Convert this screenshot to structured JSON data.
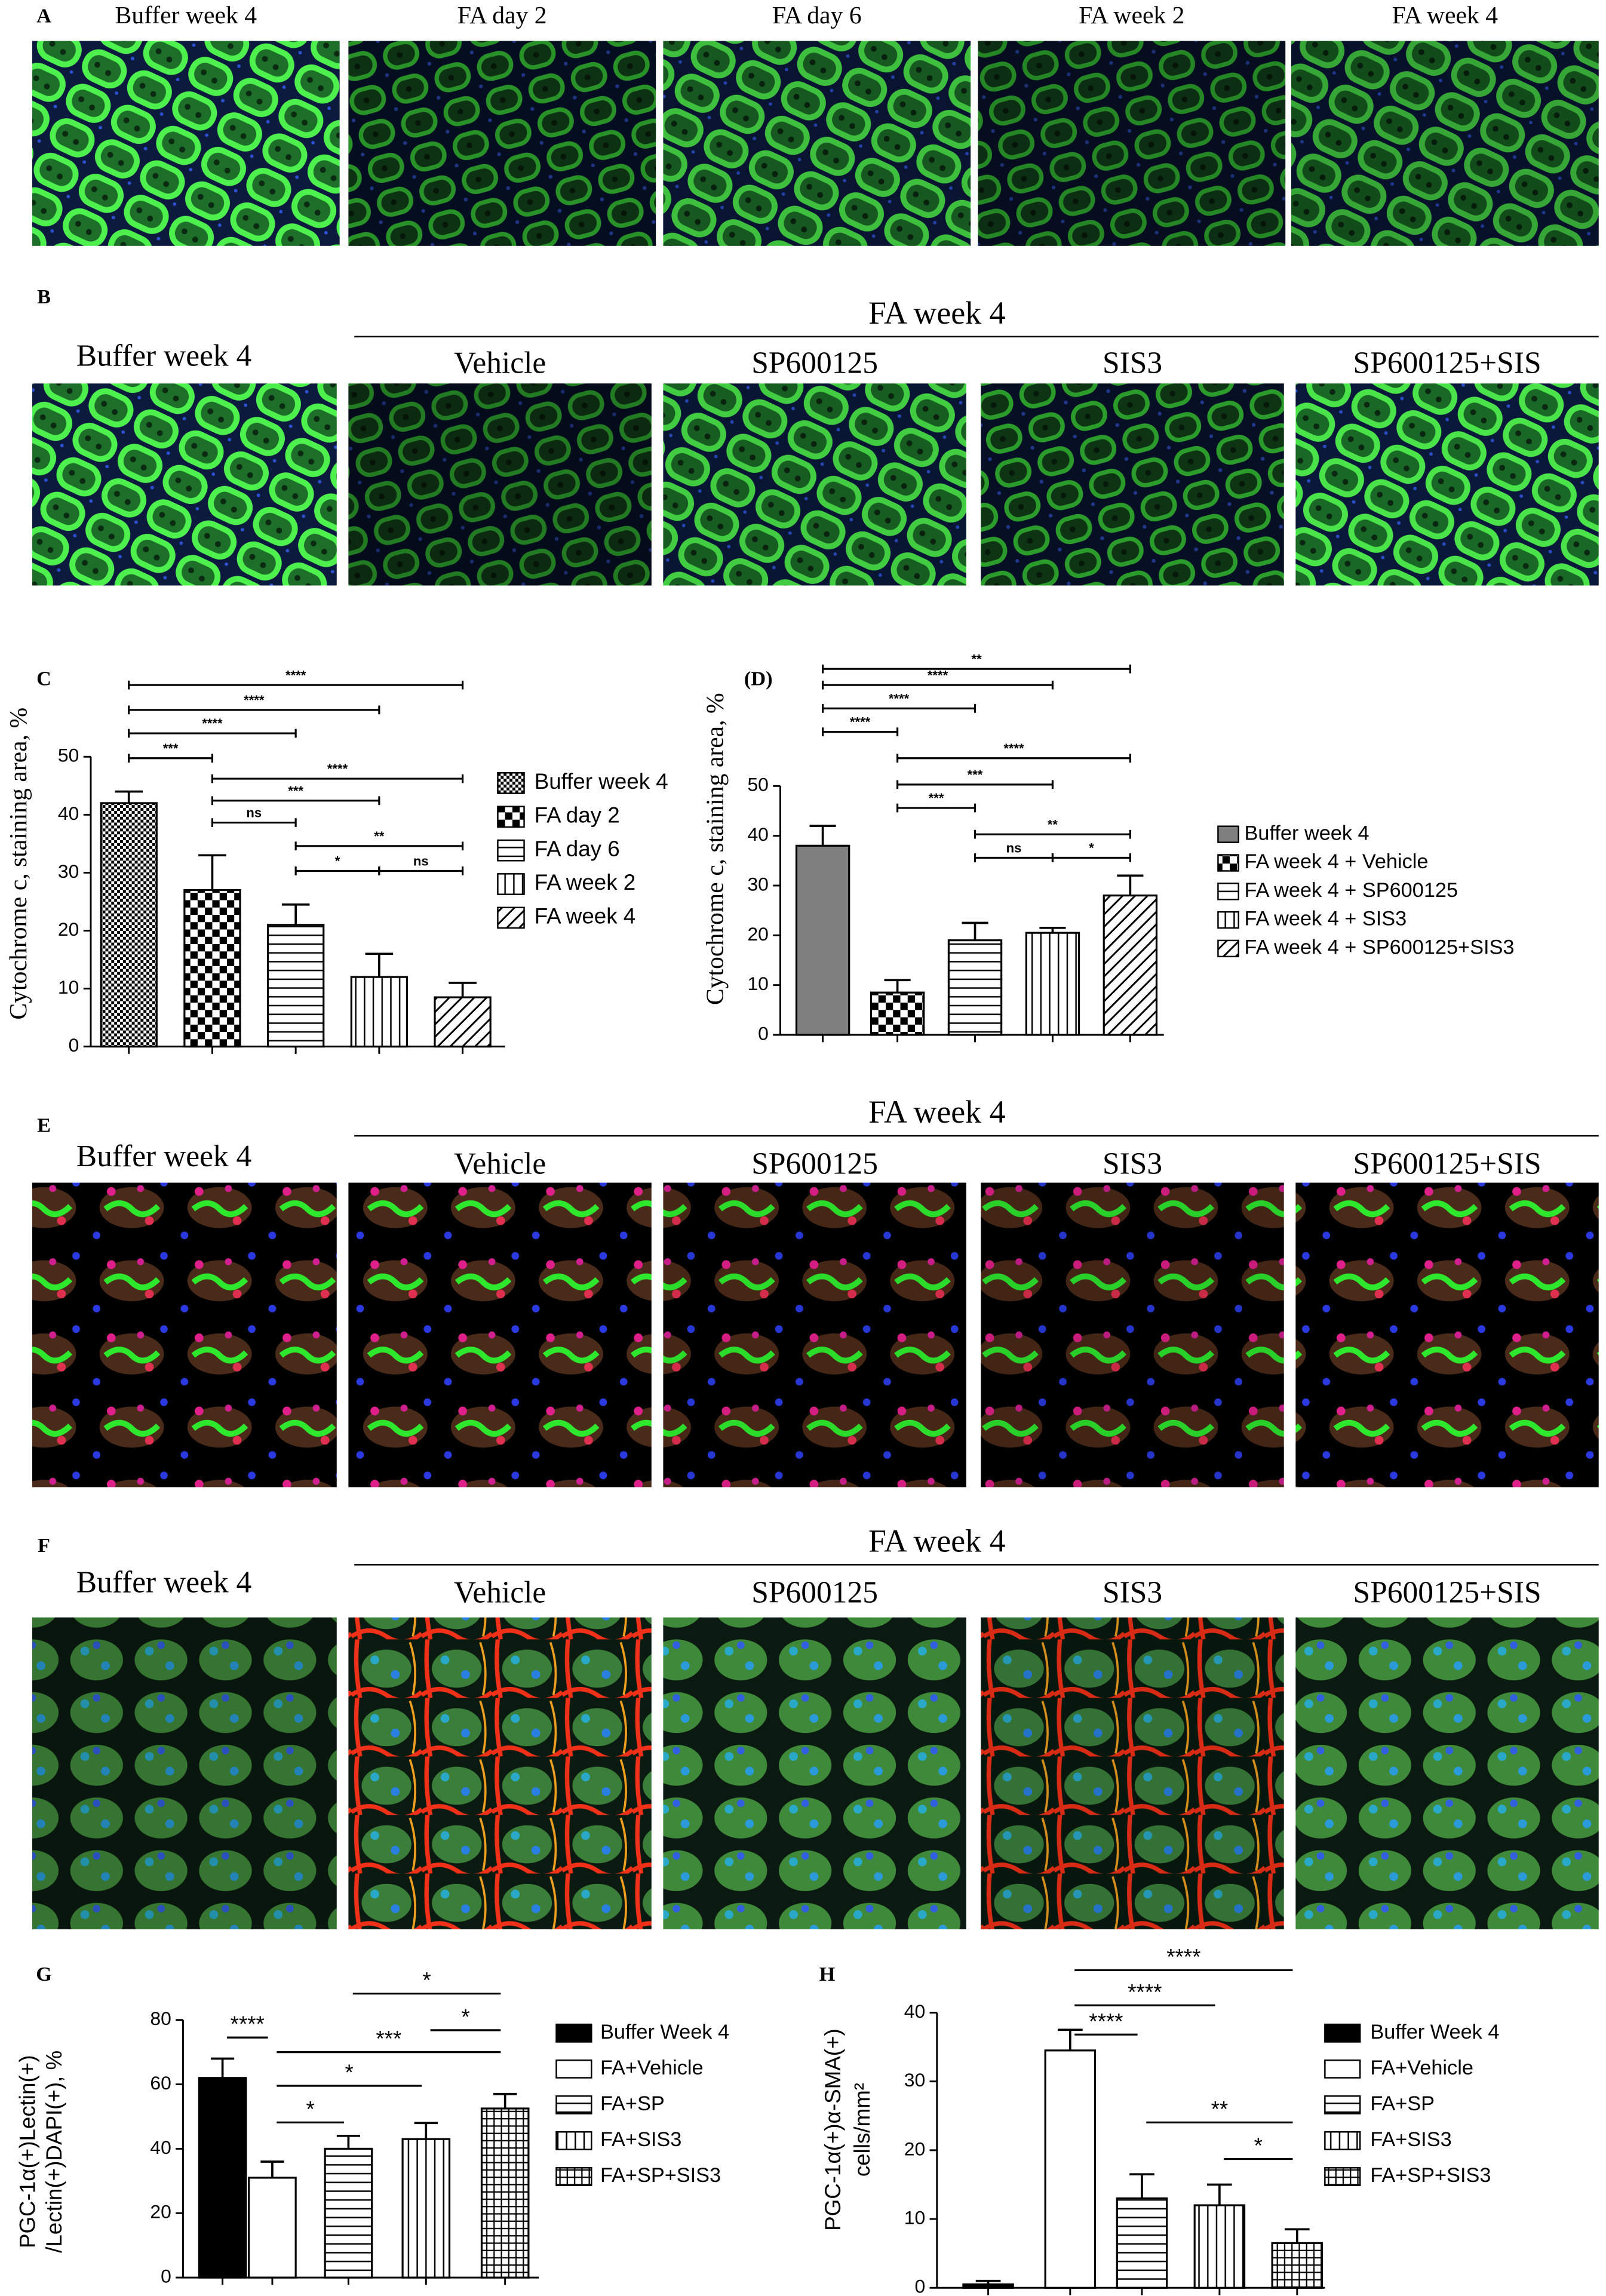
{
  "panels": {
    "A": {
      "label": "A",
      "images": [
        "Buffer week 4",
        "FA day 2",
        "FA day 6",
        "FA week 2",
        "FA week 4"
      ]
    },
    "B": {
      "label": "B",
      "group": "FA week 4",
      "control": "Buffer week 4",
      "images": [
        "Vehicle",
        "SP600125",
        "SIS3",
        "SP600125+SIS"
      ]
    },
    "E": {
      "label": "E",
      "group": "FA week 4",
      "control": "Buffer week 4",
      "images": [
        "Vehicle",
        "SP600125",
        "SIS3",
        "SP600125+SIS"
      ]
    },
    "F": {
      "label": "F",
      "group": "FA week 4",
      "control": "Buffer week 4",
      "images": [
        "Vehicle",
        "SP600125",
        "SIS3",
        "SP600125+SIS"
      ]
    }
  },
  "chart_data": [
    {
      "type": "bar",
      "label": "C",
      "y_label": [
        "Cytochrome c, staining area, %"
      ],
      "categories": [
        "Buffer week 4",
        "FA day 2",
        "FA day 6",
        "FA week 2",
        "FA week 4"
      ],
      "values": [
        42,
        27,
        21,
        12,
        8.5
      ],
      "errors": [
        2,
        6,
        3.5,
        4,
        2.5
      ],
      "fills": [
        "checker-fine",
        "checker",
        "hlines",
        "vlines",
        "diag"
      ],
      "ylim": [
        0,
        50
      ],
      "yticks": [
        0,
        10,
        20,
        30,
        40,
        50
      ],
      "legend": "right",
      "significance": [
        {
          "pair": [
            0,
            4
          ],
          "label": "****"
        },
        {
          "pair": [
            0,
            3
          ],
          "label": "****"
        },
        {
          "pair": [
            0,
            2
          ],
          "label": "****"
        },
        {
          "pair": [
            0,
            1
          ],
          "label": "***"
        },
        {
          "pair": [
            1,
            4
          ],
          "label": "****"
        },
        {
          "pair": [
            1,
            3
          ],
          "label": "***"
        },
        {
          "pair": [
            1,
            2
          ],
          "label": "ns"
        },
        {
          "pair": [
            2,
            4
          ],
          "label": "**"
        },
        {
          "pair": [
            2,
            3
          ],
          "label": "*"
        },
        {
          "pair": [
            3,
            4
          ],
          "label": "ns"
        }
      ]
    },
    {
      "type": "bar",
      "label": "(D)",
      "y_label": [
        "Cytochrome c, staining area, %"
      ],
      "categories": [
        "Buffer week 4",
        "FA week 4 + Vehicle",
        "FA week 4 + SP600125",
        "FA week 4 + SIS3",
        "FA week 4 + SP600125+SIS3"
      ],
      "values": [
        38,
        8.5,
        19,
        20.5,
        28
      ],
      "errors": [
        4,
        2.5,
        3.5,
        1,
        4
      ],
      "fills": [
        "#7f7f7f",
        "checker",
        "hlines",
        "vlines",
        "diag"
      ],
      "ylim": [
        0,
        50
      ],
      "yticks": [
        0,
        10,
        20,
        30,
        40,
        50
      ],
      "legend": "right",
      "significance": [
        {
          "pair": [
            0,
            4
          ],
          "label": "**"
        },
        {
          "pair": [
            0,
            3
          ],
          "label": "****"
        },
        {
          "pair": [
            0,
            2
          ],
          "label": "****"
        },
        {
          "pair": [
            0,
            1
          ],
          "label": "****"
        },
        {
          "pair": [
            1,
            4
          ],
          "label": "****"
        },
        {
          "pair": [
            1,
            3
          ],
          "label": "***"
        },
        {
          "pair": [
            1,
            2
          ],
          "label": "***"
        },
        {
          "pair": [
            2,
            4
          ],
          "label": "**"
        },
        {
          "pair": [
            2,
            3
          ],
          "label": "ns"
        },
        {
          "pair": [
            3,
            4
          ],
          "label": "*"
        }
      ]
    },
    {
      "type": "bar",
      "label": "G",
      "y_label": [
        "PGC-1α(+)Lectin(+)",
        "/Lectin(+)DAPI(+), %"
      ],
      "categories": [
        "Buffer Week 4",
        "FA+Vehicle",
        "FA+SP",
        "FA+SIS3",
        "FA+SP+SIS3"
      ],
      "values": [
        62,
        31,
        40,
        43,
        52.5
      ],
      "errors": [
        6,
        5,
        4,
        5,
        4.5
      ],
      "fills": [
        "#000000",
        "#ffffff",
        "hlines",
        "vlines",
        "grid"
      ],
      "ylim": [
        0,
        80
      ],
      "yticks": [
        0,
        20,
        40,
        60,
        80
      ],
      "legend": "right",
      "significance": [
        {
          "pair": [
            2,
            4
          ],
          "label": "*"
        },
        {
          "pair": [
            3,
            4
          ],
          "label": "*"
        },
        {
          "pair": [
            0,
            1
          ],
          "label": "****"
        },
        {
          "pair": [
            1,
            4
          ],
          "label": "***"
        },
        {
          "pair": [
            1,
            3
          ],
          "label": "*"
        },
        {
          "pair": [
            1,
            2
          ],
          "label": "*"
        }
      ]
    },
    {
      "type": "bar",
      "label": "H",
      "y_label": [
        "PGC-1α(+)α-SMA(+)",
        "cells/mm²"
      ],
      "categories": [
        "Buffer Week 4",
        "FA+Vehicle",
        "FA+SP",
        "FA+SIS3",
        "FA+SP+SIS3"
      ],
      "values": [
        0.5,
        34.5,
        13,
        12,
        6.5
      ],
      "errors": [
        0.5,
        3,
        3.5,
        3,
        2
      ],
      "fills": [
        "#000000",
        "#ffffff",
        "hlines",
        "vlines",
        "grid"
      ],
      "ylim": [
        0,
        40
      ],
      "yticks": [
        0,
        10,
        20,
        30,
        40
      ],
      "legend": "right",
      "significance": [
        {
          "pair": [
            1,
            4
          ],
          "label": "****"
        },
        {
          "pair": [
            1,
            3
          ],
          "label": "****"
        },
        {
          "pair": [
            1,
            2
          ],
          "label": "****"
        },
        {
          "pair": [
            2,
            4
          ],
          "label": "**"
        },
        {
          "pair": [
            3,
            4
          ],
          "label": "*"
        }
      ]
    }
  ]
}
